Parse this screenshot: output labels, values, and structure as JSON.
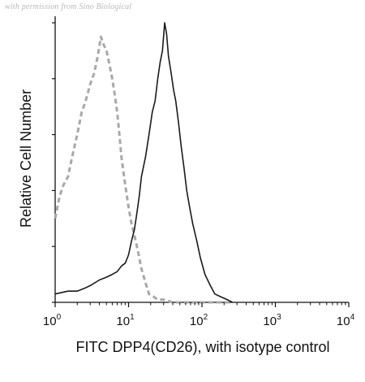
{
  "watermark": "with permission from Sino Biological",
  "chart_data": {
    "type": "line",
    "title": "",
    "xlabel": "FITC DPP4(CD26), with isotype control",
    "ylabel": "Relative Cell Number",
    "xscale": "log",
    "xlim": [
      1,
      10000
    ],
    "ylim": [
      0,
      100
    ],
    "x_ticks": [
      {
        "base": "10",
        "exp": "0",
        "value": 1
      },
      {
        "base": "10",
        "exp": "1",
        "value": 10
      },
      {
        "base": "10",
        "exp": "2",
        "value": 100
      },
      {
        "base": "10",
        "exp": "3",
        "value": 1000
      },
      {
        "base": "10",
        "exp": "4",
        "value": 10000
      }
    ],
    "y_minor_ticks": [
      0,
      20,
      40,
      60,
      80,
      100
    ],
    "grid": false,
    "legend": "none",
    "series": [
      {
        "style": "dashed",
        "color": "#a8a8a8",
        "x": [
          1.0,
          1.15,
          1.3,
          1.5,
          1.7,
          2.0,
          2.3,
          2.6,
          3.0,
          3.4,
          3.8,
          4.2,
          4.6,
          5.0,
          5.5,
          6.0,
          6.5,
          7.0,
          7.5,
          8.0,
          9.0,
          10,
          11,
          12,
          13.5,
          15,
          17,
          19,
          22,
          25,
          30,
          40,
          60,
          100,
          150,
          250
        ],
        "y": [
          30,
          38,
          42,
          45,
          52,
          60,
          68,
          72,
          78,
          82,
          88,
          95,
          92,
          90,
          85,
          80,
          74,
          68,
          60,
          52,
          42,
          34,
          28,
          24,
          18,
          12,
          7,
          3,
          2,
          1,
          1,
          0,
          0,
          0,
          0,
          0
        ]
      },
      {
        "style": "solid",
        "color": "#1a1a1a",
        "x": [
          1.0,
          1.5,
          2.0,
          2.5,
          3.0,
          4.0,
          5.0,
          6.0,
          7.0,
          8.0,
          9.0,
          10,
          11,
          12,
          13,
          14,
          15,
          17,
          19,
          21,
          23,
          25,
          27,
          29,
          31,
          33,
          35,
          38,
          41,
          44,
          48,
          52,
          57,
          62,
          68,
          75,
          85,
          95,
          110,
          130,
          150,
          180,
          220,
          260
        ],
        "y": [
          3,
          4,
          4,
          5,
          6,
          8,
          9,
          10,
          11,
          13,
          14,
          17,
          22,
          26,
          32,
          38,
          45,
          52,
          60,
          68,
          72,
          80,
          86,
          90,
          100,
          96,
          88,
          82,
          76,
          72,
          64,
          56,
          48,
          40,
          34,
          28,
          22,
          16,
          10,
          6,
          3,
          2,
          1,
          0
        ]
      }
    ]
  }
}
